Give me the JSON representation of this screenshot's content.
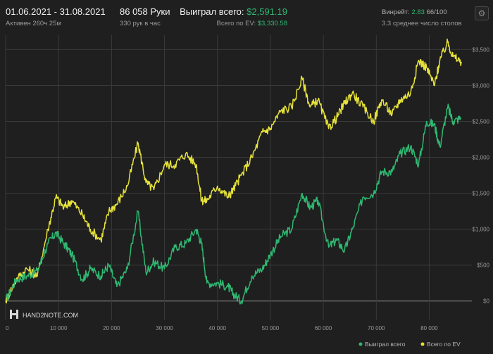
{
  "header": {
    "date_range": "01.06.2021 - 31.08.2021",
    "active": "Активен 260ч 25м",
    "hands": "86 058 Руки",
    "hands_per_hour": "330 рук в час",
    "won_label": "Выиграл всего:",
    "won_value": "$2,591.19",
    "ev_label": "Всего по EV:",
    "ev_value": "$3,330.58",
    "winrate_label": "Винрейт:",
    "winrate_value": "2.83",
    "winrate_unit": "66/100",
    "avg_tables": "3.3 среднее число столов"
  },
  "logo": {
    "text": "HAND2NOTE.COM"
  },
  "colors": {
    "won": "#2fb872",
    "ev": "#e6e23a",
    "background": "#1f1f1f",
    "grid": "#3a3a3a"
  },
  "icons": {
    "settings": "gear-icon",
    "logo": "h2n-logo-icon"
  },
  "chart_data": {
    "type": "line",
    "xlabel": "",
    "ylabel": "",
    "x_ticks": [
      "0",
      "10 000",
      "20 000",
      "30 000",
      "40 000",
      "50 000",
      "60 000",
      "70 000",
      "80 000"
    ],
    "y_ticks": [
      "$0",
      "$500",
      "$1,000",
      "$1,500",
      "$2,000",
      "$2,500",
      "$3,000",
      "$3,500"
    ],
    "xlim": [
      0,
      86058
    ],
    "ylim": [
      -120,
      3700
    ],
    "grid": true,
    "legend_position": "bottom-right",
    "series": [
      {
        "name": "Выиграл всего",
        "color": "#2fb872",
        "x": [
          0,
          2000,
          4000,
          6000,
          8000,
          9500,
          11000,
          12500,
          14500,
          16000,
          18000,
          19500,
          21000,
          23000,
          25000,
          26500,
          28000,
          30000,
          32000,
          34000,
          36000,
          37000,
          38000,
          40000,
          42000,
          43000,
          44500,
          46500,
          48500,
          50000,
          52000,
          54000,
          56000,
          57500,
          59000,
          61000,
          62500,
          64000,
          65500,
          67500,
          69500,
          71000,
          73000,
          74500,
          76500,
          78000,
          79500,
          81000,
          82000,
          83500,
          84500,
          86058
        ],
        "y": [
          0,
          300,
          350,
          420,
          800,
          950,
          800,
          650,
          300,
          450,
          350,
          500,
          200,
          450,
          1250,
          400,
          550,
          450,
          750,
          800,
          1000,
          800,
          250,
          250,
          200,
          100,
          0,
          350,
          450,
          650,
          900,
          1000,
          1500,
          1300,
          1400,
          750,
          850,
          700,
          1000,
          1450,
          1500,
          1800,
          1800,
          2050,
          2150,
          1900,
          2500,
          2450,
          2150,
          2700,
          2500,
          2550
        ]
      },
      {
        "name": "Всего по EV",
        "color": "#e6e23a",
        "x": [
          0,
          2000,
          4000,
          6000,
          8000,
          9500,
          11000,
          12500,
          14500,
          16000,
          18000,
          19500,
          21000,
          23000,
          25000,
          26500,
          28000,
          30000,
          32000,
          34000,
          36000,
          37000,
          38000,
          40000,
          42000,
          43000,
          44500,
          46500,
          48500,
          50000,
          52000,
          54000,
          56000,
          57500,
          59000,
          61000,
          62500,
          64000,
          65500,
          67500,
          69500,
          71000,
          73000,
          74500,
          76500,
          78000,
          79500,
          81000,
          82000,
          83500,
          84500,
          86058
        ],
        "y": [
          0,
          300,
          450,
          350,
          1000,
          1450,
          1300,
          1400,
          1200,
          1000,
          850,
          1250,
          1350,
          1600,
          2200,
          1650,
          1550,
          1900,
          1900,
          2050,
          1900,
          1400,
          1400,
          1600,
          1450,
          1550,
          1750,
          2000,
          2350,
          2400,
          2650,
          2700,
          3100,
          2700,
          2800,
          2400,
          2550,
          2750,
          2900,
          2700,
          2500,
          2800,
          2600,
          2800,
          2900,
          3350,
          3250,
          3000,
          3350,
          3600,
          3400,
          3330
        ]
      }
    ]
  }
}
